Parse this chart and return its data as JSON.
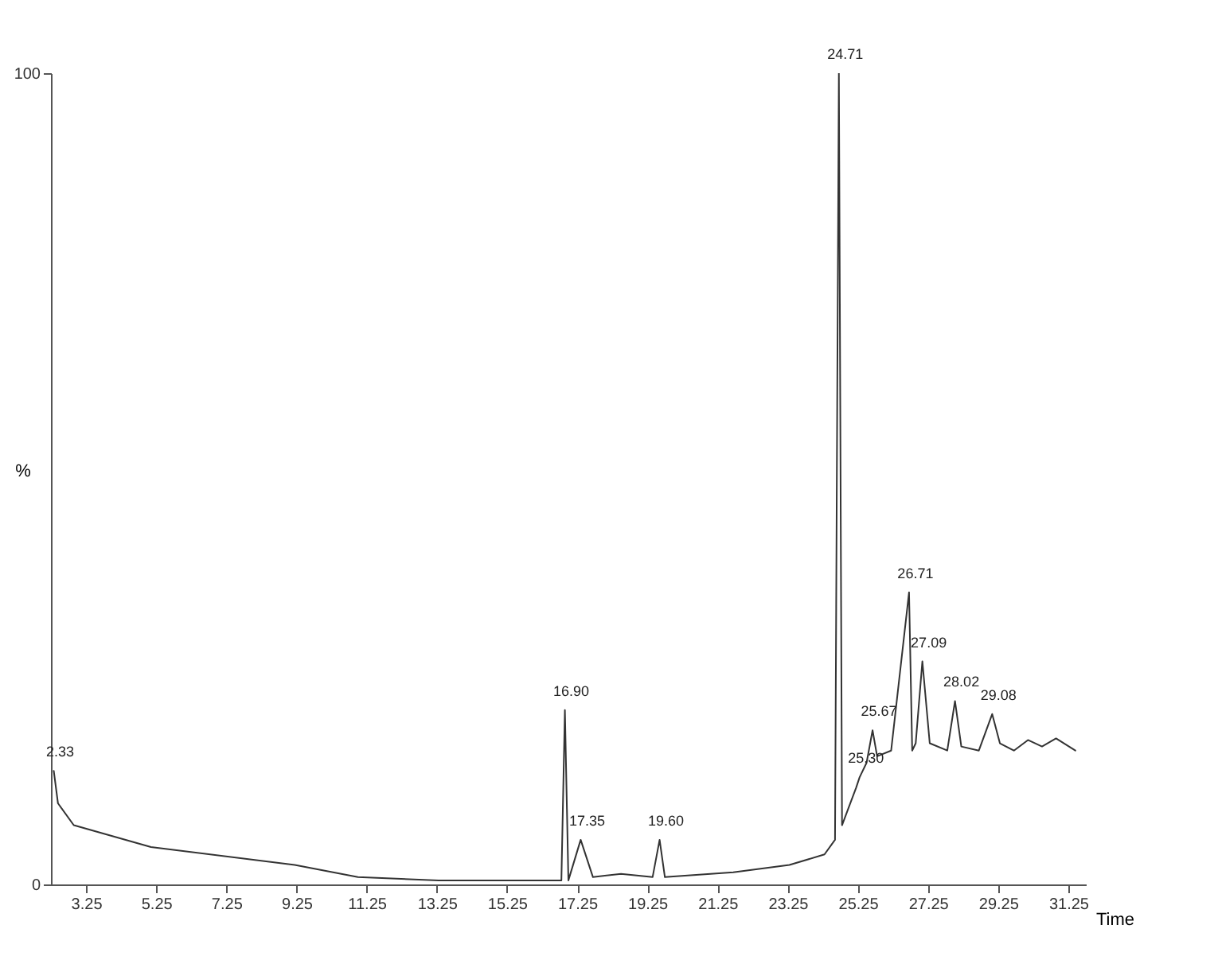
{
  "chart_data": {
    "type": "line",
    "xlabel": "Time",
    "ylabel": "%",
    "x": [
      2.33,
      2.45,
      2.9,
      5.1,
      9.2,
      11,
      13.3,
      16.8,
      16.9,
      17.0,
      17.35,
      17.7,
      18.5,
      19.4,
      19.6,
      19.75,
      21.7,
      23.3,
      24.3,
      24.6,
      24.71,
      24.8,
      25.2,
      25.3,
      25.5,
      25.67,
      25.8,
      26.2,
      26.71,
      26.8,
      26.9,
      27.09,
      27.3,
      27.8,
      28.02,
      28.2,
      28.7,
      29.08,
      29.3,
      29.7,
      30.1,
      30.5,
      30.9,
      31.45
    ],
    "series": [
      {
        "color": "#333333",
        "values": [
          14,
          10,
          7.3,
          4.6,
          2.4,
          0.9,
          0.5,
          0.5,
          21.5,
          0.5,
          5.5,
          0.9,
          1.3,
          0.9,
          5.5,
          0.9,
          1.5,
          2.4,
          3.7,
          5.5,
          100,
          7.3,
          11.9,
          13.2,
          15,
          19,
          15.8,
          16.5,
          36,
          16.5,
          17.4,
          27.5,
          17.4,
          16.5,
          22.6,
          17,
          16.5,
          21,
          17.4,
          16.5,
          17.8,
          17,
          18,
          16.5
        ]
      }
    ],
    "xlim": [
      2.25,
      31.75
    ],
    "ylim": [
      0,
      100
    ],
    "xticks": [
      {
        "value": 3.25,
        "label": "3.25"
      },
      {
        "value": 5.25,
        "label": "5.25"
      },
      {
        "value": 7.25,
        "label": "7.25"
      },
      {
        "value": 9.25,
        "label": "9.25"
      },
      {
        "value": 11.25,
        "label": "11.25"
      },
      {
        "value": 13.25,
        "label": "13.25"
      },
      {
        "value": 15.25,
        "label": "15.25"
      },
      {
        "value": 17.25,
        "label": "17.25"
      },
      {
        "value": 19.25,
        "label": "19.25"
      },
      {
        "value": 21.25,
        "label": "21.25"
      },
      {
        "value": 23.25,
        "label": "23.25"
      },
      {
        "value": 25.25,
        "label": "25.25"
      },
      {
        "value": 27.25,
        "label": "27.25"
      },
      {
        "value": 29.25,
        "label": "29.25"
      },
      {
        "value": 31.25,
        "label": "31.25"
      }
    ],
    "yticks": [
      0,
      100
    ],
    "annotations": [
      {
        "text": "2.33",
        "x": 2.33,
        "y": 14
      },
      {
        "text": "16.90",
        "x": 16.9,
        "y": 21.5
      },
      {
        "text": "17.35",
        "x": 17.35,
        "y": 5.5
      },
      {
        "text": "19.60",
        "x": 19.6,
        "y": 5.5
      },
      {
        "text": "24.71",
        "x": 24.71,
        "y": 100
      },
      {
        "text": "25.30",
        "x": 25.3,
        "y": 13.2
      },
      {
        "text": "25.67",
        "x": 25.67,
        "y": 19
      },
      {
        "text": "26.71",
        "x": 26.71,
        "y": 36
      },
      {
        "text": "27.09",
        "x": 27.09,
        "y": 27.5
      },
      {
        "text": "28.02",
        "x": 28.02,
        "y": 22.6
      },
      {
        "text": "29.08",
        "x": 29.08,
        "y": 21
      }
    ],
    "grid": false,
    "marker": "none",
    "line_style": "solid"
  }
}
